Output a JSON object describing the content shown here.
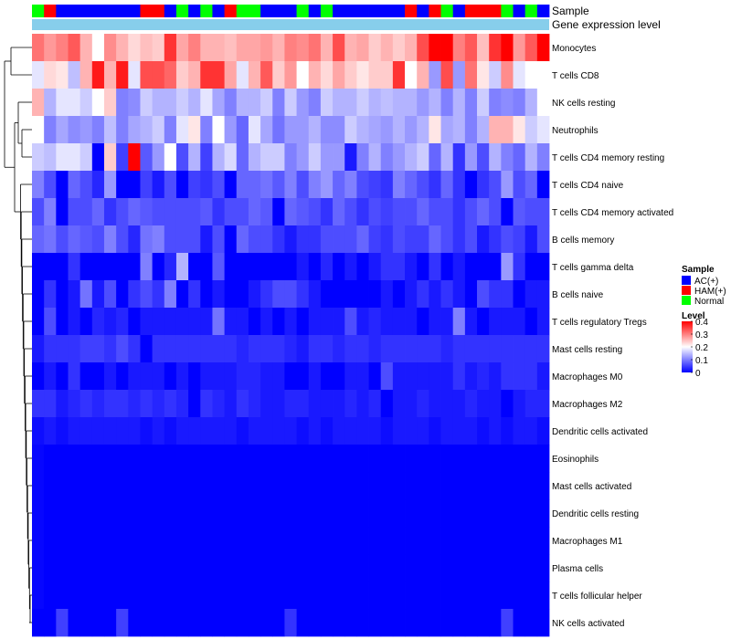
{
  "chart_data": {
    "type": "heatmap",
    "annotation_labels": {
      "sample": "Sample",
      "expression": "Gene expression level"
    },
    "colors": {
      "AC(+)": "#0000ff",
      "HAM(+)": "#ff0000",
      "Normal": "#00ff00",
      "expression_bar": "#87ceeb",
      "low": "#0000ff",
      "mid": "#ffffff",
      "high": "#ff0000"
    },
    "samples": [
      "Normal",
      "HAM(+)",
      "AC(+)",
      "AC(+)",
      "AC(+)",
      "AC(+)",
      "AC(+)",
      "AC(+)",
      "AC(+)",
      "HAM(+)",
      "HAM(+)",
      "AC(+)",
      "Normal",
      "AC(+)",
      "Normal",
      "AC(+)",
      "HAM(+)",
      "Normal",
      "Normal",
      "AC(+)",
      "AC(+)",
      "AC(+)",
      "Normal",
      "AC(+)",
      "Normal",
      "AC(+)",
      "AC(+)",
      "AC(+)",
      "AC(+)",
      "AC(+)",
      "AC(+)",
      "HAM(+)",
      "AC(+)",
      "HAM(+)",
      "Normal",
      "AC(+)",
      "HAM(+)",
      "HAM(+)",
      "HAM(+)",
      "Normal",
      "AC(+)",
      "Normal",
      "AC(+)"
    ],
    "rows": [
      {
        "name": "Monocytes",
        "values": [
          0.31,
          0.28,
          0.3,
          0.33,
          0.26,
          0.2,
          0.29,
          0.26,
          0.23,
          0.25,
          0.24,
          0.36,
          0.27,
          0.3,
          0.26,
          0.26,
          0.25,
          0.27,
          0.27,
          0.28,
          0.26,
          0.3,
          0.29,
          0.31,
          0.26,
          0.34,
          0.26,
          0.27,
          0.24,
          0.26,
          0.24,
          0.26,
          0.34,
          0.4,
          0.4,
          0.3,
          0.33,
          0.25,
          0.36,
          0.4,
          0.28,
          0.33,
          0.4
        ]
      },
      {
        "name": "T cells CD8",
        "values": [
          0.18,
          0.23,
          0.22,
          0.15,
          0.26,
          0.38,
          0.26,
          0.38,
          0.18,
          0.34,
          0.34,
          0.32,
          0.24,
          0.26,
          0.36,
          0.36,
          0.27,
          0.18,
          0.26,
          0.33,
          0.24,
          0.28,
          0.2,
          0.26,
          0.23,
          0.27,
          0.24,
          0.22,
          0.24,
          0.24,
          0.36,
          0.2,
          0.26,
          0.12,
          0.34,
          0.12,
          0.31,
          0.22,
          0.16,
          0.29,
          0.18,
          0.2,
          0.2
        ]
      },
      {
        "name": "NK cells resting",
        "values": [
          0.26,
          0.14,
          0.18,
          0.18,
          0.16,
          0.2,
          0.24,
          0.1,
          0.11,
          0.16,
          0.14,
          0.14,
          0.16,
          0.14,
          0.18,
          0.13,
          0.1,
          0.14,
          0.14,
          0.16,
          0.1,
          0.16,
          0.12,
          0.1,
          0.16,
          0.14,
          0.14,
          0.16,
          0.14,
          0.15,
          0.14,
          0.14,
          0.12,
          0.14,
          0.1,
          0.14,
          0.1,
          0.16,
          0.1,
          0.11,
          0.1,
          0.14,
          0.2
        ]
      },
      {
        "name": "Neutrophils",
        "values": [
          0.2,
          0.1,
          0.13,
          0.11,
          0.12,
          0.1,
          0.15,
          0.1,
          0.13,
          0.14,
          0.16,
          0.1,
          0.18,
          0.22,
          0.1,
          0.2,
          0.12,
          0.08,
          0.18,
          0.13,
          0.09,
          0.12,
          0.12,
          0.14,
          0.11,
          0.11,
          0.16,
          0.14,
          0.13,
          0.12,
          0.14,
          0.12,
          0.14,
          0.22,
          0.13,
          0.14,
          0.1,
          0.14,
          0.26,
          0.26,
          0.22,
          0.16,
          0.18
        ]
      },
      {
        "name": "T cells CD4 memory resting",
        "values": [
          0.16,
          0.15,
          0.18,
          0.18,
          0.16,
          0.0,
          0.24,
          0.05,
          0.4,
          0.07,
          0.12,
          0.2,
          0.06,
          0.14,
          0.05,
          0.14,
          0.17,
          0.08,
          0.14,
          0.16,
          0.16,
          0.1,
          0.12,
          0.16,
          0.12,
          0.12,
          0.02,
          0.1,
          0.14,
          0.1,
          0.12,
          0.14,
          0.16,
          0.08,
          0.14,
          0.04,
          0.12,
          0.06,
          0.14,
          0.1,
          0.08,
          0.14,
          0.1
        ]
      },
      {
        "name": "T cells CD4 naive",
        "values": [
          0.1,
          0.06,
          0.0,
          0.08,
          0.06,
          0.03,
          0.12,
          0.0,
          0.0,
          0.05,
          0.02,
          0.06,
          0.0,
          0.05,
          0.04,
          0.06,
          0.0,
          0.08,
          0.08,
          0.09,
          0.07,
          0.1,
          0.06,
          0.1,
          0.12,
          0.08,
          0.1,
          0.06,
          0.05,
          0.04,
          0.1,
          0.08,
          0.06,
          0.04,
          0.08,
          0.04,
          0.0,
          0.04,
          0.06,
          0.12,
          0.06,
          0.08,
          0.0
        ]
      },
      {
        "name": "T cells CD4 memory activated",
        "values": [
          0.06,
          0.1,
          0.0,
          0.06,
          0.06,
          0.08,
          0.04,
          0.06,
          0.08,
          0.07,
          0.06,
          0.06,
          0.06,
          0.06,
          0.07,
          0.04,
          0.06,
          0.06,
          0.08,
          0.07,
          0.0,
          0.08,
          0.07,
          0.06,
          0.04,
          0.08,
          0.06,
          0.04,
          0.06,
          0.05,
          0.06,
          0.06,
          0.08,
          0.06,
          0.06,
          0.04,
          0.06,
          0.08,
          0.06,
          0.0,
          0.07,
          0.06,
          0.06
        ]
      },
      {
        "name": "B cells memory",
        "values": [
          0.08,
          0.09,
          0.06,
          0.08,
          0.07,
          0.06,
          0.1,
          0.06,
          0.03,
          0.09,
          0.1,
          0.06,
          0.06,
          0.06,
          0.02,
          0.06,
          0.0,
          0.08,
          0.06,
          0.06,
          0.04,
          0.02,
          0.04,
          0.04,
          0.06,
          0.06,
          0.06,
          0.08,
          0.05,
          0.04,
          0.06,
          0.05,
          0.05,
          0.08,
          0.06,
          0.04,
          0.06,
          0.02,
          0.04,
          0.06,
          0.05,
          0.02,
          0.06
        ]
      },
      {
        "name": "T cells gamma delta",
        "values": [
          0.0,
          0.0,
          0.0,
          0.04,
          0.0,
          0.0,
          0.0,
          0.0,
          0.0,
          0.1,
          0.0,
          0.03,
          0.14,
          0.0,
          0.0,
          0.07,
          0.0,
          0.0,
          0.0,
          0.0,
          0.0,
          0.0,
          0.02,
          0.0,
          0.03,
          0.0,
          0.02,
          0.0,
          0.02,
          0.04,
          0.04,
          0.02,
          0.0,
          0.04,
          0.0,
          0.02,
          0.0,
          0.0,
          0.0,
          0.12,
          0.04,
          0.0,
          0.0
        ]
      },
      {
        "name": "B cells naive",
        "values": [
          0.0,
          0.04,
          0.0,
          0.02,
          0.09,
          0.02,
          0.06,
          0.0,
          0.04,
          0.06,
          0.04,
          0.1,
          0.0,
          0.04,
          0.0,
          0.02,
          0.0,
          0.0,
          0.02,
          0.04,
          0.06,
          0.06,
          0.04,
          0.02,
          0.0,
          0.0,
          0.0,
          0.0,
          0.0,
          0.02,
          0.0,
          0.02,
          0.04,
          0.02,
          0.04,
          0.02,
          0.0,
          0.06,
          0.04,
          0.04,
          0.0,
          0.02,
          0.02
        ]
      },
      {
        "name": "T cells regulatory  Tregs",
        "values": [
          0.0,
          0.06,
          0.0,
          0.02,
          0.0,
          0.03,
          0.02,
          0.03,
          0.0,
          0.02,
          0.02,
          0.02,
          0.02,
          0.02,
          0.02,
          0.09,
          0.02,
          0.02,
          0.0,
          0.02,
          0.0,
          0.02,
          0.0,
          0.02,
          0.02,
          0.02,
          0.06,
          0.02,
          0.03,
          0.02,
          0.02,
          0.02,
          0.0,
          0.02,
          0.02,
          0.1,
          0.02,
          0.0,
          0.02,
          0.02,
          0.02,
          0.0,
          0.02
        ]
      },
      {
        "name": "Mast cells resting",
        "values": [
          0.02,
          0.04,
          0.04,
          0.04,
          0.05,
          0.05,
          0.04,
          0.06,
          0.04,
          0.0,
          0.04,
          0.04,
          0.04,
          0.04,
          0.04,
          0.04,
          0.04,
          0.03,
          0.04,
          0.04,
          0.04,
          0.03,
          0.02,
          0.04,
          0.04,
          0.03,
          0.04,
          0.04,
          0.03,
          0.04,
          0.04,
          0.04,
          0.04,
          0.04,
          0.03,
          0.04,
          0.04,
          0.04,
          0.04,
          0.04,
          0.04,
          0.04,
          0.04
        ]
      },
      {
        "name": "Macrophages M0",
        "values": [
          0.0,
          0.02,
          0.0,
          0.04,
          0.0,
          0.0,
          0.02,
          0.0,
          0.02,
          0.02,
          0.02,
          0.0,
          0.02,
          0.0,
          0.02,
          0.02,
          0.02,
          0.03,
          0.03,
          0.02,
          0.02,
          0.0,
          0.0,
          0.02,
          0.0,
          0.0,
          0.02,
          0.02,
          0.0,
          0.06,
          0.02,
          0.02,
          0.02,
          0.02,
          0.02,
          0.04,
          0.02,
          0.03,
          0.02,
          0.04,
          0.04,
          0.04,
          0.02
        ]
      },
      {
        "name": "Macrophages M2",
        "values": [
          0.04,
          0.04,
          0.02,
          0.03,
          0.04,
          0.03,
          0.04,
          0.04,
          0.03,
          0.04,
          0.03,
          0.04,
          0.03,
          0.0,
          0.04,
          0.03,
          0.02,
          0.04,
          0.03,
          0.02,
          0.02,
          0.03,
          0.03,
          0.02,
          0.02,
          0.02,
          0.03,
          0.02,
          0.03,
          0.0,
          0.02,
          0.02,
          0.03,
          0.02,
          0.02,
          0.02,
          0.03,
          0.02,
          0.02,
          0.0,
          0.02,
          0.03,
          0.03
        ]
      },
      {
        "name": "Dendritic cells activated",
        "values": [
          0.01,
          0.02,
          0.01,
          0.02,
          0.02,
          0.02,
          0.02,
          0.02,
          0.02,
          0.01,
          0.02,
          0.01,
          0.02,
          0.02,
          0.02,
          0.02,
          0.02,
          0.01,
          0.02,
          0.02,
          0.02,
          0.02,
          0.01,
          0.02,
          0.01,
          0.02,
          0.02,
          0.02,
          0.02,
          0.01,
          0.02,
          0.02,
          0.02,
          0.01,
          0.02,
          0.02,
          0.02,
          0.01,
          0.02,
          0.01,
          0.02,
          0.02,
          0.01
        ]
      },
      {
        "name": "Eosinophils",
        "values": [
          0.005,
          0,
          0,
          0,
          0,
          0,
          0,
          0,
          0,
          0,
          0,
          0,
          0,
          0,
          0,
          0,
          0,
          0,
          0,
          0,
          0,
          0,
          0,
          0,
          0,
          0,
          0,
          0,
          0,
          0,
          0,
          0,
          0,
          0,
          0,
          0,
          0,
          0,
          0,
          0,
          0,
          0,
          0
        ]
      },
      {
        "name": "Mast cells activated",
        "values": [
          0.005,
          0,
          0,
          0,
          0,
          0,
          0,
          0,
          0,
          0,
          0,
          0,
          0,
          0,
          0,
          0,
          0,
          0,
          0,
          0,
          0,
          0,
          0,
          0,
          0,
          0,
          0,
          0,
          0,
          0,
          0,
          0,
          0,
          0,
          0,
          0,
          0,
          0,
          0,
          0,
          0,
          0,
          0
        ]
      },
      {
        "name": "Dendritic cells resting",
        "values": [
          0.005,
          0,
          0,
          0,
          0,
          0,
          0,
          0,
          0,
          0,
          0,
          0,
          0,
          0,
          0,
          0,
          0,
          0,
          0,
          0,
          0,
          0,
          0,
          0,
          0,
          0,
          0,
          0,
          0,
          0,
          0,
          0,
          0,
          0,
          0,
          0,
          0,
          0,
          0,
          0,
          0,
          0,
          0
        ]
      },
      {
        "name": "Macrophages M1",
        "values": [
          0.005,
          0,
          0,
          0,
          0,
          0,
          0,
          0,
          0,
          0,
          0,
          0,
          0,
          0,
          0,
          0,
          0,
          0,
          0,
          0,
          0,
          0,
          0,
          0,
          0,
          0,
          0,
          0,
          0,
          0,
          0,
          0,
          0,
          0,
          0,
          0,
          0,
          0,
          0,
          0,
          0,
          0,
          0
        ]
      },
      {
        "name": "Plasma cells",
        "values": [
          0.005,
          0,
          0,
          0,
          0,
          0,
          0,
          0,
          0,
          0,
          0,
          0,
          0,
          0,
          0,
          0,
          0,
          0,
          0,
          0,
          0,
          0,
          0,
          0,
          0,
          0,
          0,
          0,
          0,
          0,
          0,
          0,
          0,
          0,
          0,
          0,
          0,
          0,
          0,
          0,
          0,
          0,
          0
        ]
      },
      {
        "name": "T cells follicular helper",
        "values": [
          0.005,
          0,
          0,
          0,
          0,
          0,
          0,
          0,
          0,
          0,
          0,
          0,
          0,
          0,
          0,
          0,
          0,
          0,
          0,
          0,
          0,
          0,
          0,
          0,
          0,
          0,
          0,
          0,
          0,
          0,
          0,
          0,
          0,
          0,
          0,
          0,
          0,
          0,
          0,
          0,
          0,
          0,
          0
        ]
      },
      {
        "name": "NK cells activated",
        "values": [
          0,
          0,
          0.05,
          0,
          0,
          0,
          0,
          0.05,
          0,
          0,
          0,
          0,
          0,
          0,
          0,
          0,
          0,
          0,
          0,
          0,
          0,
          0.04,
          0,
          0,
          0,
          0,
          0,
          0,
          0,
          0,
          0,
          0,
          0,
          0,
          0,
          0,
          0,
          0,
          0,
          0.05,
          0,
          0,
          0
        ]
      }
    ],
    "legend": {
      "sample_title": "Sample",
      "sample_entries": [
        "AC(+)",
        "HAM(+)",
        "Normal"
      ],
      "level_title": "Level",
      "level_ticks": [
        "0.4",
        "0.3",
        "0.2",
        "0.1",
        "0"
      ],
      "level_range": [
        0,
        0.4
      ]
    }
  }
}
